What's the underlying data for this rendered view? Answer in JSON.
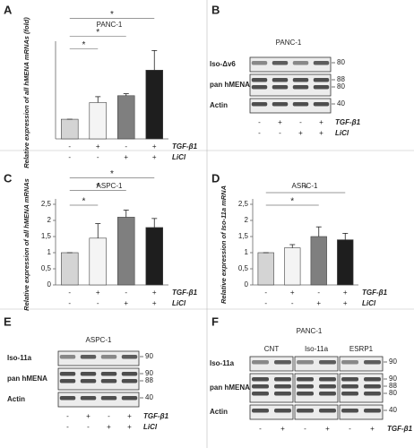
{
  "chart_data": [
    {
      "type": "bar",
      "label": "A",
      "title": "PANC-1",
      "ylabel": "Relative expression of all hMENA mRNAs (fold)",
      "values": [
        1,
        1.85,
        2.2,
        3.5
      ],
      "errors": [
        0,
        0.3,
        0.1,
        1.0
      ],
      "colors": [
        "#d4d4d4",
        "#f4f4f4",
        "#7f7f7f",
        "#1e1e1e"
      ],
      "ylim": [
        0,
        4.7
      ],
      "conditions": [
        {
          "label": "TGF-β1",
          "signs": [
            "-",
            "+",
            "-",
            "+"
          ]
        },
        {
          "label": "LiCl",
          "signs": [
            "-",
            "-",
            "+",
            "+"
          ]
        }
      ],
      "significance": [
        {
          "pair": [
            0,
            1
          ],
          "label": "*"
        },
        {
          "pair": [
            0,
            2
          ],
          "label": "*"
        },
        {
          "pair": [
            0,
            3
          ],
          "label": "*"
        }
      ]
    },
    {
      "type": "bar",
      "label": "C",
      "title": "ASPC-1",
      "ylabel": "Relative expression of all hMENA mRNAs",
      "values": [
        1,
        1.45,
        2.1,
        1.78
      ],
      "errors": [
        0,
        0.45,
        0.22,
        0.28
      ],
      "colors": [
        "#d4d4d4",
        "#f4f4f4",
        "#7f7f7f",
        "#1e1e1e"
      ],
      "ylim": [
        0,
        2.5
      ],
      "yticks": [
        0,
        {
          "value": 0.5,
          "label": "0,5"
        },
        1,
        {
          "value": 1.5,
          "label": "1,5"
        },
        2,
        {
          "value": 2.5,
          "label": "2,5"
        }
      ],
      "conditions": [
        {
          "label": "TGF-β1",
          "signs": [
            "-",
            "+",
            "-",
            "+"
          ]
        },
        {
          "label": "LiCl",
          "signs": [
            "-",
            "-",
            "+",
            "+"
          ]
        }
      ],
      "significance": [
        {
          "pair": [
            0,
            1
          ],
          "label": "*"
        },
        {
          "pair": [
            0,
            2
          ],
          "label": "*"
        },
        {
          "pair": [
            0,
            3
          ],
          "label": "*"
        }
      ]
    },
    {
      "type": "bar",
      "label": "D",
      "title": "ASPC-1",
      "ylabel": "Relative expression of Iso-11a mRNA",
      "values": [
        1,
        1.15,
        1.5,
        1.4
      ],
      "errors": [
        0,
        0.1,
        0.3,
        0.2
      ],
      "colors": [
        "#d4d4d4",
        "#f4f4f4",
        "#7f7f7f",
        "#1e1e1e"
      ],
      "ylim": [
        0,
        2.5
      ],
      "yticks": [
        0,
        {
          "value": 0.5,
          "label": "0,5"
        },
        1,
        {
          "value": 1.5,
          "label": "1,5"
        },
        2,
        {
          "value": 2.5,
          "label": "2,5"
        }
      ],
      "conditions": [
        {
          "label": "TGF-β1",
          "signs": [
            "-",
            "+",
            "-",
            "+"
          ]
        },
        {
          "label": "LiCl",
          "signs": [
            "-",
            "-",
            "+",
            "+"
          ]
        }
      ],
      "significance": [
        {
          "pair": [
            0,
            2
          ],
          "label": "*"
        },
        {
          "pair": [
            0,
            3
          ],
          "label": "*"
        }
      ]
    }
  ],
  "blots": [
    {
      "label": "B",
      "title": "PANC-1",
      "rows": [
        {
          "name": "Iso-Δv6",
          "markers": [
            80
          ]
        },
        {
          "name": "pan hMENA",
          "markers": [
            88,
            80
          ]
        },
        {
          "name": "Actin",
          "markers": [
            40
          ]
        }
      ],
      "conditions": [
        {
          "label": "TGF-β1",
          "signs": [
            "-",
            "+",
            "-",
            "+"
          ]
        },
        {
          "label": "LiCl",
          "signs": [
            "-",
            "-",
            "+",
            "+"
          ]
        }
      ]
    },
    {
      "label": "E",
      "title": "ASPC-1",
      "rows": [
        {
          "name": "Iso-11a",
          "markers": [
            90
          ]
        },
        {
          "name": "pan hMENA",
          "markers": [
            90,
            88
          ]
        },
        {
          "name": "Actin",
          "markers": [
            40
          ]
        }
      ],
      "conditions": [
        {
          "label": "TGF-β1",
          "signs": [
            "-",
            "+",
            "-",
            "+"
          ]
        },
        {
          "label": "LiCl",
          "signs": [
            "-",
            "-",
            "+",
            "+"
          ]
        }
      ]
    },
    {
      "label": "F",
      "title": "PANC-1",
      "groups": [
        "CNT",
        "Iso-11a",
        "ESRP1"
      ],
      "rows": [
        {
          "name": "Iso-11a",
          "markers": [
            90
          ]
        },
        {
          "name": "pan hMENA",
          "markers": [
            90,
            88,
            80
          ]
        },
        {
          "name": "Actin",
          "markers": [
            40
          ]
        }
      ],
      "conditions": [
        {
          "label": "TGF-β1",
          "signs": [
            "-",
            "+",
            "-",
            "+",
            "-",
            "+"
          ]
        }
      ]
    }
  ]
}
